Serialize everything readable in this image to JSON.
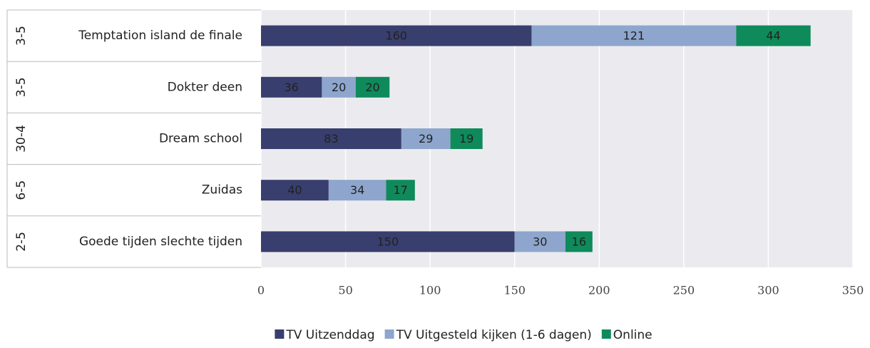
{
  "chart_data": {
    "type": "stacked_bar_horizontal",
    "categories": [
      "Temptation island de finale",
      "Dokter deen",
      "Dream school",
      "Zuidas",
      "Goede tijden slechte tijden"
    ],
    "dates": [
      "3-5",
      "3-5",
      "30-4",
      "6-5",
      "2-5"
    ],
    "series": [
      {
        "name": "TV Uitzenddag",
        "color": "#383e6e",
        "label_color": "#ffffff",
        "values": [
          160,
          36,
          83,
          40,
          150
        ]
      },
      {
        "name": "TV Uitgesteld kijken (1-6 dagen)",
        "color": "#8ea6cd",
        "label_color": "#ffffff",
        "values": [
          121,
          20,
          29,
          34,
          30
        ]
      },
      {
        "name": "Online",
        "color": "#0f8a5b",
        "label_color": "#111111",
        "values": [
          44,
          20,
          19,
          17,
          16
        ]
      }
    ],
    "xlim": [
      0,
      350
    ],
    "xticks": [
      0,
      50,
      100,
      150,
      200,
      250,
      300,
      350
    ],
    "grid": true,
    "legend": "bottom"
  }
}
